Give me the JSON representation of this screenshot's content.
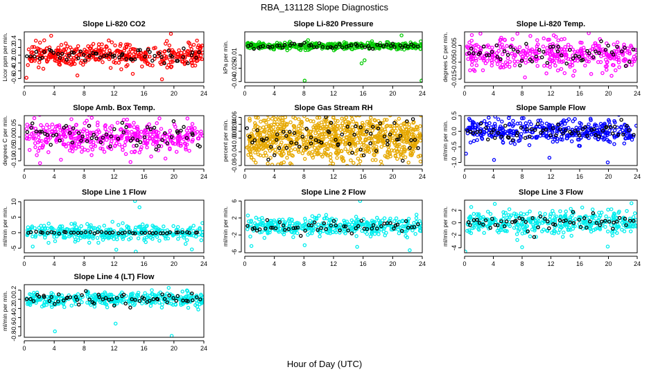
{
  "figure": {
    "title": "RBA_131128  Slope Diagnostics",
    "xlabel": "Hour of Day (UTC)"
  },
  "colors": {
    "background": "#ffffff",
    "highlight": "#000000"
  },
  "chart_data": [
    {
      "id": "co2",
      "type": "scatter",
      "title": "Slope Li-820 CO2",
      "ylabel": "Licor ppm per min.",
      "color": "#ff0000",
      "xlim": [
        0,
        24
      ],
      "ylim": [
        -0.7,
        0.6
      ],
      "xticks": [
        "0",
        "4",
        "8",
        "12",
        "16",
        "20",
        "24"
      ],
      "yticks": [
        {
          "v": -0.6,
          "l": "-0.6"
        },
        {
          "v": -0.4,
          "l": "-0.4"
        },
        {
          "v": -0.2,
          "l": "-0.2"
        },
        {
          "v": 0.0,
          "l": "0.0"
        },
        {
          "v": 0.2,
          "l": "0.2"
        },
        {
          "v": 0.4,
          "l": "0.4"
        }
      ],
      "density": 400,
      "spread": 0.14,
      "black_count": 60,
      "outliers": [
        [
          0.3,
          -0.58
        ],
        [
          3.6,
          0.5
        ],
        [
          7.1,
          -0.52
        ],
        [
          14.5,
          -0.48
        ],
        [
          18.4,
          -0.62
        ],
        [
          19.6,
          0.55
        ]
      ]
    },
    {
      "id": "pressure",
      "type": "scatter",
      "title": "Slope Li-820 Pressure",
      "ylabel": "kPa per min.",
      "color": "#00cc00",
      "xlim": [
        0,
        24
      ],
      "ylim": [
        -0.041,
        0.016
      ],
      "xticks": [
        "0",
        "4",
        "8",
        "12",
        "16",
        "20",
        "24"
      ],
      "yticks": [
        {
          "v": -0.04,
          "l": "-0.04"
        },
        {
          "v": -0.025,
          "l": "-0.025"
        },
        {
          "v": -0.01,
          "l": "-0.01"
        }
      ],
      "density": 380,
      "spread": 0.0018,
      "black_count": 55,
      "outliers": [
        [
          8.1,
          -0.039
        ],
        [
          15.8,
          -0.0195
        ],
        [
          16.2,
          -0.016
        ],
        [
          23.9,
          -0.039
        ],
        [
          21.2,
          0.012
        ]
      ]
    },
    {
      "id": "temp",
      "type": "scatter",
      "title": "Slope Li-820 Temp.",
      "ylabel": "degrees C per min.",
      "color": "#ff00ff",
      "xlim": [
        0,
        24
      ],
      "ylim": [
        -0.017,
        0.013
      ],
      "xticks": [
        "0",
        "4",
        "8",
        "12",
        "16",
        "20",
        "24"
      ],
      "yticks": [
        {
          "v": -0.015,
          "l": "-0.015"
        },
        {
          "v": -0.005,
          "l": "-0.005"
        },
        {
          "v": 0.005,
          "l": "0.005"
        }
      ],
      "density": 380,
      "spread": 0.0045,
      "black_count": 55,
      "outliers": [
        [
          8.4,
          -0.014
        ],
        [
          12.4,
          0.011
        ],
        [
          15.1,
          -0.013
        ],
        [
          17.6,
          -0.012
        ]
      ]
    },
    {
      "id": "ambbox",
      "type": "scatter",
      "title": "Slope Amb. Box Temp.",
      "ylabel": "degrees C per min.",
      "color": "#ff00ff",
      "xlim": [
        0,
        24
      ],
      "ylim": [
        -0.12,
        0.09
      ],
      "xticks": [
        "0",
        "4",
        "8",
        "12",
        "16",
        "20",
        "24"
      ],
      "yticks": [
        {
          "v": -0.1,
          "l": "-0.10"
        },
        {
          "v": -0.05,
          "l": "-0.05"
        },
        {
          "v": 0.0,
          "l": "0.00"
        },
        {
          "v": 0.05,
          "l": "0.05"
        }
      ],
      "density": 420,
      "spread": 0.035,
      "black_count": 60,
      "outliers": [
        [
          2.1,
          -0.11
        ],
        [
          6.3,
          0.075
        ],
        [
          14.2,
          -0.105
        ],
        [
          21.8,
          0.078
        ]
      ]
    },
    {
      "id": "rh",
      "type": "scatter",
      "title": "Slope Gas Stream RH",
      "ylabel": "percent per min.",
      "color": "#e6a800",
      "xlim": [
        0,
        24
      ],
      "ylim": [
        -0.08,
        0.065
      ],
      "xticks": [
        "0",
        "4",
        "8",
        "12",
        "16",
        "20",
        "24"
      ],
      "yticks": [
        {
          "v": -0.08,
          "l": "-0.08"
        },
        {
          "v": -0.04,
          "l": "-0.04"
        },
        {
          "v": 0.0,
          "l": "0.00"
        },
        {
          "v": 0.02,
          "l": "0.02"
        },
        {
          "v": 0.04,
          "l": "0.04"
        },
        {
          "v": 0.06,
          "l": "0.06"
        }
      ],
      "density": 900,
      "spread": 0.035,
      "black_count": 70,
      "outliers": []
    },
    {
      "id": "sampleflow",
      "type": "scatter",
      "title": "Slope Sample Flow",
      "ylabel": "ml/min per min.",
      "color": "#0000ff",
      "xlim": [
        0,
        24
      ],
      "ylim": [
        -1.1,
        0.5
      ],
      "xticks": [
        "0",
        "4",
        "8",
        "12",
        "16",
        "20",
        "24"
      ],
      "yticks": [
        {
          "v": -1.0,
          "l": "-1.0"
        },
        {
          "v": -0.5,
          "l": "-0.5"
        },
        {
          "v": 0.0,
          "l": "0.0"
        },
        {
          "v": 0.5,
          "l": "0.5"
        }
      ],
      "density": 380,
      "spread": 0.18,
      "black_count": 60,
      "outliers": [
        [
          0.2,
          -0.72
        ],
        [
          4.1,
          -0.92
        ],
        [
          11.8,
          -0.85
        ],
        [
          19.9,
          -1.0
        ],
        [
          8.2,
          0.42
        ]
      ]
    },
    {
      "id": "line1",
      "type": "scatter",
      "title": "Slope Line 1 Flow",
      "ylabel": "ml/min per min.",
      "color": "#00eeee",
      "xlim": [
        0,
        24
      ],
      "ylim": [
        -6.5,
        10.5
      ],
      "xticks": [
        "0",
        "4",
        "8",
        "12",
        "16",
        "20",
        "24"
      ],
      "yticks": [
        {
          "v": -5,
          "l": "-5"
        },
        {
          "v": 0,
          "l": "0"
        },
        {
          "v": 5,
          "l": "5"
        },
        {
          "v": 10,
          "l": "10"
        }
      ],
      "density": 360,
      "spread": 1.3,
      "black_count": 45,
      "black_spread": 0.15,
      "outliers": [
        [
          14.8,
          10.2
        ],
        [
          12.3,
          -5.5
        ],
        [
          14.9,
          -6.1
        ],
        [
          22.4,
          -5.4
        ],
        [
          15.4,
          8.2
        ]
      ]
    },
    {
      "id": "line2",
      "type": "scatter",
      "title": "Slope Line 2 Flow",
      "ylabel": "ml/min per min.",
      "color": "#00eeee",
      "xlim": [
        0,
        24
      ],
      "ylim": [
        -6.2,
        6.2
      ],
      "xticks": [
        "0",
        "4",
        "8",
        "12",
        "16",
        "20",
        "24"
      ],
      "yticks": [
        {
          "v": -6,
          "l": "-6"
        },
        {
          "v": -2,
          "l": "-2"
        },
        {
          "v": 2,
          "l": "2"
        },
        {
          "v": 6,
          "l": "6"
        }
      ],
      "density": 380,
      "spread": 1.0,
      "black_count": 55,
      "black_spread": 0.7,
      "outliers": [
        [
          15.6,
          6.0
        ],
        [
          8.1,
          -4.4
        ],
        [
          15.2,
          -4.8
        ],
        [
          22.3,
          -5.6
        ],
        [
          0.9,
          -4.6
        ]
      ]
    },
    {
      "id": "line3",
      "type": "scatter",
      "title": "Slope Line 3 Flow",
      "ylabel": "ml/min per min.",
      "color": "#00eeee",
      "xlim": [
        0,
        24
      ],
      "ylim": [
        -4.8,
        3.6
      ],
      "xticks": [
        "0",
        "4",
        "8",
        "12",
        "16",
        "20",
        "24"
      ],
      "yticks": [
        {
          "v": -4,
          "l": "-4"
        },
        {
          "v": -2,
          "l": "-2"
        },
        {
          "v": 0,
          "l": "0"
        },
        {
          "v": 2,
          "l": "2"
        }
      ],
      "density": 380,
      "spread": 0.9,
      "black_count": 55,
      "black_spread": 0.7,
      "outliers": [
        [
          0.1,
          -4.6
        ],
        [
          4.2,
          3.0
        ],
        [
          8.0,
          -3.9
        ],
        [
          19.9,
          -3.8
        ],
        [
          23.2,
          3.1
        ]
      ]
    },
    {
      "id": "line4",
      "type": "scatter",
      "title": "Slope Line 4 (LT) Flow",
      "ylabel": "ml/min per min.",
      "color": "#00eeee",
      "xlim": [
        0,
        24
      ],
      "ylim": [
        -0.83,
        0.32
      ],
      "xticks": [
        "0",
        "4",
        "8",
        "12",
        "16",
        "20",
        "24"
      ],
      "yticks": [
        {
          "v": -0.8,
          "l": "-0.8"
        },
        {
          "v": -0.6,
          "l": "-0.6"
        },
        {
          "v": -0.4,
          "l": "-0.4"
        },
        {
          "v": -0.2,
          "l": "-0.2"
        },
        {
          "v": 0.0,
          "l": "0.0"
        },
        {
          "v": 0.2,
          "l": "0.2"
        }
      ],
      "density": 380,
      "spread": 0.075,
      "black_count": 60,
      "black_spread": 0.06,
      "outliers": [
        [
          4.1,
          -0.7
        ],
        [
          12.2,
          -0.53
        ],
        [
          19.7,
          -0.8
        ],
        [
          19.3,
          0.25
        ]
      ]
    }
  ]
}
